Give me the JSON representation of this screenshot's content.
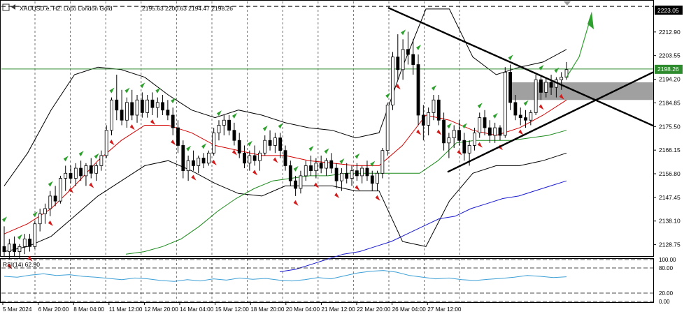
{
  "header": {
    "title": "XAUUSD.e, H2:  Loco London Gold",
    "ohlc": "2195.63 2200.63 2194.47 2198.26"
  },
  "indicator": {
    "label": "RSI(14) 62.90"
  },
  "colors": {
    "background": "#ffffff",
    "grid": "#000000",
    "bull_candle": "#ffffff",
    "bear_candle": "#000000",
    "ma_fast": "#d40000",
    "ma_mid": "#1a8a1a",
    "ma_slow": "#1a1ad0",
    "bollinger": "#000000",
    "rsi_line": "#3c9fd6",
    "arrow_up": "#2ea02e",
    "arrow_down": "#d41b1b",
    "zone": "#808080",
    "current_price_line": "#2e8b2e"
  },
  "price_axis": {
    "labels": [
      "2212.90",
      "2203.55",
      "2194.20",
      "2184.85",
      "2175.50",
      "2166.15",
      "2156.80",
      "2147.45",
      "2138.10",
      "2128.75"
    ],
    "current_price": "2198.26",
    "top_price": "2223.05"
  },
  "rsi_axis": {
    "labels": [
      "100.00",
      "80.00",
      "20.00",
      "0.00"
    ]
  },
  "time_axis": {
    "labels": [
      "5 Mar 2024",
      "6 Mar 20:00",
      "8 Mar 04:00",
      "11 Mar 12:00",
      "12 Mar 20:00",
      "14 Mar 04:00",
      "15 Mar 12:00",
      "18 Mar 20:00",
      "20 Mar 04:00",
      "21 Mar 12:00",
      "22 Mar 20:00",
      "26 Mar 04:00",
      "27 Mar 12:00"
    ]
  },
  "chart_data": {
    "type": "candlestick",
    "symbol": "XAUUSD.e",
    "timeframe": "H2",
    "ylim": [
      2124.5,
      2225.0
    ],
    "rsi_levels": [
      100,
      80,
      20,
      0
    ],
    "candles": [
      [
        2128,
        2136,
        2124,
        2126
      ],
      [
        2126,
        2131,
        2123,
        2129
      ],
      [
        2129,
        2132,
        2124,
        2126
      ],
      [
        2126,
        2129,
        2123,
        2128
      ],
      [
        2128,
        2133,
        2125,
        2131
      ],
      [
        2131,
        2133,
        2126,
        2128
      ],
      [
        2128,
        2138,
        2127,
        2137
      ],
      [
        2137,
        2143,
        2134,
        2141
      ],
      [
        2141,
        2145,
        2137,
        2143
      ],
      [
        2143,
        2150,
        2140,
        2148
      ],
      [
        2148,
        2152,
        2144,
        2146
      ],
      [
        2146,
        2156,
        2145,
        2155
      ],
      [
        2155,
        2160,
        2150,
        2157
      ],
      [
        2157,
        2160,
        2153,
        2155
      ],
      [
        2155,
        2161,
        2152,
        2159
      ],
      [
        2159,
        2162,
        2154,
        2156
      ],
      [
        2156,
        2161,
        2152,
        2160
      ],
      [
        2160,
        2163,
        2155,
        2157
      ],
      [
        2157,
        2161,
        2154,
        2160
      ],
      [
        2160,
        2166,
        2158,
        2164
      ],
      [
        2164,
        2176,
        2163,
        2174
      ],
      [
        2174,
        2187,
        2172,
        2186
      ],
      [
        2186,
        2196,
        2178,
        2182
      ],
      [
        2182,
        2190,
        2176,
        2178
      ],
      [
        2178,
        2187,
        2175,
        2185
      ],
      [
        2185,
        2190,
        2178,
        2180
      ],
      [
        2180,
        2188,
        2177,
        2186
      ],
      [
        2186,
        2189,
        2179,
        2181
      ],
      [
        2181,
        2188,
        2179,
        2186
      ],
      [
        2186,
        2189,
        2180,
        2183
      ],
      [
        2183,
        2187,
        2179,
        2185
      ],
      [
        2185,
        2188,
        2180,
        2182
      ],
      [
        2182,
        2186,
        2178,
        2180
      ],
      [
        2180,
        2183,
        2172,
        2175
      ],
      [
        2175,
        2178,
        2165,
        2168
      ],
      [
        2168,
        2170,
        2155,
        2158
      ],
      [
        2158,
        2164,
        2154,
        2162
      ],
      [
        2162,
        2166,
        2158,
        2160
      ],
      [
        2160,
        2164,
        2157,
        2163
      ],
      [
        2163,
        2165,
        2159,
        2161
      ],
      [
        2161,
        2166,
        2160,
        2165
      ],
      [
        2165,
        2175,
        2164,
        2173
      ],
      [
        2173,
        2178,
        2170,
        2176
      ],
      [
        2176,
        2180,
        2172,
        2178
      ],
      [
        2178,
        2180,
        2172,
        2174
      ],
      [
        2174,
        2177,
        2168,
        2170
      ],
      [
        2170,
        2173,
        2163,
        2165
      ],
      [
        2165,
        2168,
        2159,
        2161
      ],
      [
        2161,
        2166,
        2158,
        2164
      ],
      [
        2164,
        2168,
        2160,
        2162
      ],
      [
        2162,
        2166,
        2158,
        2165
      ],
      [
        2165,
        2172,
        2164,
        2170
      ],
      [
        2170,
        2174,
        2166,
        2168
      ],
      [
        2168,
        2173,
        2165,
        2171
      ],
      [
        2171,
        2173,
        2163,
        2166
      ],
      [
        2166,
        2168,
        2158,
        2160
      ],
      [
        2160,
        2162,
        2152,
        2154
      ],
      [
        2154,
        2156,
        2148,
        2151
      ],
      [
        2151,
        2158,
        2149,
        2156
      ],
      [
        2156,
        2162,
        2154,
        2160
      ],
      [
        2160,
        2164,
        2156,
        2158
      ],
      [
        2158,
        2163,
        2155,
        2161
      ],
      [
        2161,
        2164,
        2157,
        2159
      ],
      [
        2159,
        2163,
        2156,
        2162
      ],
      [
        2162,
        2165,
        2157,
        2159
      ],
      [
        2159,
        2161,
        2151,
        2154
      ],
      [
        2154,
        2159,
        2150,
        2157
      ],
      [
        2157,
        2161,
        2153,
        2155
      ],
      [
        2155,
        2160,
        2152,
        2158
      ],
      [
        2158,
        2161,
        2154,
        2156
      ],
      [
        2156,
        2160,
        2153,
        2159
      ],
      [
        2159,
        2162,
        2154,
        2156
      ],
      [
        2156,
        2158,
        2150,
        2153
      ],
      [
        2153,
        2158,
        2150,
        2157
      ],
      [
        2157,
        2167,
        2155,
        2166
      ],
      [
        2166,
        2185,
        2164,
        2184
      ],
      [
        2184,
        2205,
        2182,
        2203
      ],
      [
        2203,
        2212,
        2194,
        2198
      ],
      [
        2198,
        2210,
        2194,
        2206
      ],
      [
        2206,
        2213,
        2200,
        2204
      ],
      [
        2204,
        2210,
        2196,
        2200
      ],
      [
        2200,
        2204,
        2176,
        2180
      ],
      [
        2180,
        2184,
        2170,
        2176
      ],
      [
        2176,
        2183,
        2172,
        2181
      ],
      [
        2181,
        2188,
        2178,
        2186
      ],
      [
        2186,
        2188,
        2176,
        2178
      ],
      [
        2178,
        2181,
        2166,
        2169
      ],
      [
        2169,
        2173,
        2163,
        2171
      ],
      [
        2171,
        2176,
        2167,
        2174
      ],
      [
        2174,
        2178,
        2168,
        2170
      ],
      [
        2170,
        2173,
        2162,
        2165
      ],
      [
        2165,
        2170,
        2160,
        2168
      ],
      [
        2168,
        2175,
        2166,
        2173
      ],
      [
        2173,
        2181,
        2171,
        2179
      ],
      [
        2179,
        2182,
        2172,
        2175
      ],
      [
        2175,
        2178,
        2169,
        2172
      ],
      [
        2172,
        2177,
        2169,
        2175
      ],
      [
        2175,
        2176,
        2170,
        2172
      ],
      [
        2172,
        2199,
        2171,
        2197
      ],
      [
        2197,
        2200,
        2182,
        2185
      ],
      [
        2185,
        2188,
        2178,
        2180
      ],
      [
        2180,
        2183,
        2176,
        2179
      ],
      [
        2179,
        2182,
        2175,
        2178
      ],
      [
        2178,
        2182,
        2176,
        2181
      ],
      [
        2181,
        2196,
        2180,
        2194
      ],
      [
        2194,
        2196,
        2186,
        2189
      ],
      [
        2189,
        2195,
        2187,
        2193
      ],
      [
        2193,
        2196,
        2188,
        2191
      ],
      [
        2191,
        2195,
        2187,
        2194
      ],
      [
        2194,
        2197,
        2190,
        2195
      ],
      [
        2195,
        2201,
        2194,
        2198
      ]
    ],
    "bollinger_upper": [
      2152,
      2165,
      2182,
      2196,
      2199,
      2198,
      2195,
      2188,
      2182,
      2179,
      2182,
      2180,
      2177,
      2175,
      2174,
      2171,
      2173,
      2199,
      2222,
      2222,
      2203,
      2196,
      2199,
      2201,
      2206
    ],
    "bollinger_lower": [
      2126,
      2128,
      2132,
      2140,
      2148,
      2154,
      2160,
      2162,
      2158,
      2153,
      2149,
      2148,
      2152,
      2152,
      2152,
      2150,
      2150,
      2130,
      2128,
      2146,
      2157,
      2160,
      2160,
      2162,
      2165
    ],
    "ma_fast": [
      2133,
      2137,
      2143,
      2152,
      2162,
      2170,
      2176,
      2176,
      2173,
      2168,
      2166,
      2164,
      2164,
      2162,
      2161,
      2160,
      2160,
      2168,
      2180,
      2178,
      2174,
      2172,
      2175,
      2180,
      2186
    ],
    "ma_mid": [
      2125,
      2126,
      2128,
      2131,
      2136,
      2142,
      2147,
      2151,
      2154,
      2155,
      2156,
      2156,
      2157,
      2157,
      2157,
      2157,
      2157,
      2162,
      2169,
      2170,
      2170,
      2170,
      2171,
      2172,
      2174
    ],
    "ma_slow": [
      2118,
      2119,
      2121,
      2123,
      2125,
      2126,
      2128,
      2130,
      2133,
      2136,
      2139,
      2140,
      2143,
      2145,
      2147,
      2148,
      2150,
      2152,
      2154
    ],
    "rsi": [
      60,
      58,
      63,
      66,
      62,
      64,
      60,
      58,
      55,
      52,
      56,
      54,
      50,
      48,
      52,
      49,
      54,
      51,
      56,
      53,
      55,
      51,
      49,
      52,
      57,
      54,
      61,
      68,
      72,
      74,
      70,
      62,
      58,
      54,
      56,
      52,
      50,
      53,
      55,
      58,
      62,
      60,
      57,
      59
    ],
    "annotations": {
      "descending_trendline": [
        [
          2222.5,
          2186.0
        ],
        "from 20 Mar peak to right edge"
      ],
      "ascending_trendline": "from 22 Mar low through right edge",
      "supply_zone": [
        2186.0,
        2193.0
      ],
      "projection_arrow": "up toward 2220"
    }
  }
}
